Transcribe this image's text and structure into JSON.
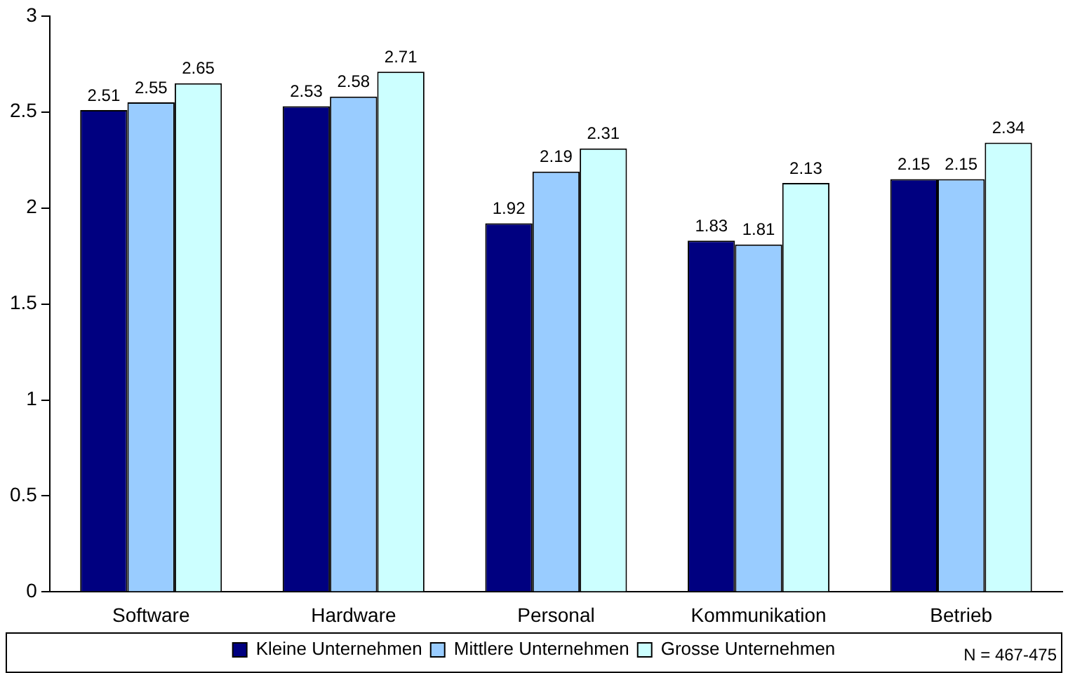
{
  "chart_data": {
    "type": "bar",
    "categories": [
      "Software",
      "Hardware",
      "Personal",
      "Kommunikation",
      "Betrieb"
    ],
    "series": [
      {
        "name": "Kleine Unternehmen",
        "color": "#000080",
        "values": [
          2.51,
          2.53,
          1.92,
          1.83,
          2.15
        ]
      },
      {
        "name": "Mittlere Unternehmen",
        "color": "#99ccff",
        "values": [
          2.55,
          2.58,
          2.19,
          1.81,
          2.15
        ]
      },
      {
        "name": "Grosse Unternehmen",
        "color": "#ccffff",
        "values": [
          2.65,
          2.71,
          2.31,
          2.13,
          2.34
        ]
      }
    ],
    "ylim": [
      0,
      3
    ],
    "yticks": [
      0,
      0.5,
      1,
      1.5,
      2,
      2.5,
      3
    ],
    "grid": false,
    "legend": "bottom",
    "data_labels": true,
    "annotations": [
      "N = 467-475"
    ]
  }
}
